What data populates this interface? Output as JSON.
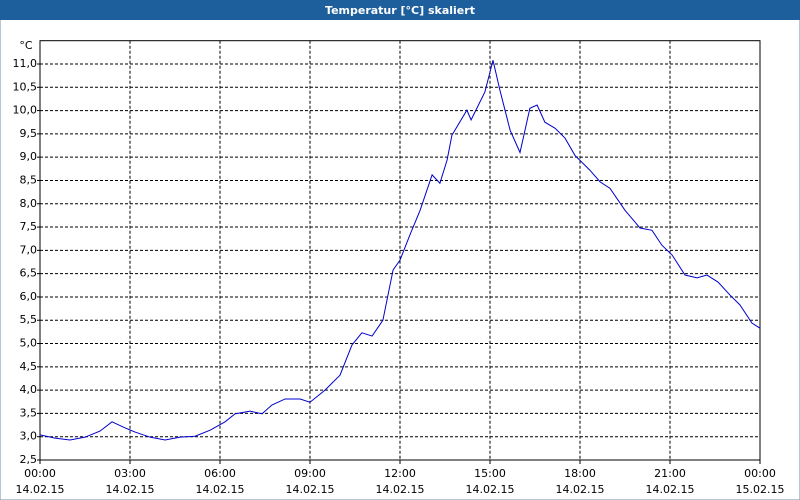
{
  "chart_data": {
    "type": "line",
    "title": "Temperatur [°C] skaliert",
    "ylabel": "°C",
    "xlim": [
      0,
      24
    ],
    "xticks": [
      {
        "value": 0,
        "label": "00:00",
        "date": "14.02.15"
      },
      {
        "value": 3,
        "label": "03:00",
        "date": "14.02.15"
      },
      {
        "value": 6,
        "label": "06:00",
        "date": "14.02.15"
      },
      {
        "value": 9,
        "label": "09:00",
        "date": "14.02.15"
      },
      {
        "value": 12,
        "label": "12:00",
        "date": "14.02.15"
      },
      {
        "value": 15,
        "label": "15:00",
        "date": "14.02.15"
      },
      {
        "value": 18,
        "label": "18:00",
        "date": "14.02.15"
      },
      {
        "value": 21,
        "label": "21:00",
        "date": "14.02.15"
      },
      {
        "value": 24,
        "label": "00:00",
        "date": "15.02.15"
      }
    ],
    "ylim": [
      2.5,
      11.5
    ],
    "yticks": [
      {
        "value": 2.5,
        "label": "2,5"
      },
      {
        "value": 3,
        "label": "3,0"
      },
      {
        "value": 3.5,
        "label": "3,5"
      },
      {
        "value": 4,
        "label": "4,0"
      },
      {
        "value": 4.5,
        "label": "4,5"
      },
      {
        "value": 5,
        "label": "5,0"
      },
      {
        "value": 5.5,
        "label": "5,5"
      },
      {
        "value": 6,
        "label": "6,0"
      },
      {
        "value": 6.5,
        "label": "6,5"
      },
      {
        "value": 7,
        "label": "7,0"
      },
      {
        "value": 7.5,
        "label": "7,5"
      },
      {
        "value": 8,
        "label": "8,0"
      },
      {
        "value": 8.5,
        "label": "8,5"
      },
      {
        "value": 9,
        "label": "9,0"
      },
      {
        "value": 9.5,
        "label": "9,5"
      },
      {
        "value": 10,
        "label": "10,0"
      },
      {
        "value": 10.5,
        "label": "10,5"
      },
      {
        "value": 11,
        "label": "11,0"
      }
    ],
    "grid": true,
    "x": [
      0,
      0.5,
      1,
      1.5,
      2,
      2.4,
      2.83,
      3.17,
      3.67,
      4.17,
      4.67,
      5.17,
      5.67,
      6.17,
      6.5,
      7,
      7.4,
      7.73,
      8.17,
      8.67,
      9,
      9.5,
      10,
      10.4,
      10.73,
      11.07,
      11.43,
      11.77,
      12,
      12.33,
      12.67,
      13.07,
      13.33,
      13.57,
      13.73,
      14.23,
      14.37,
      14.83,
      15.1,
      15.33,
      15.67,
      16,
      16.33,
      16.57,
      16.83,
      17.17,
      17.5,
      17.83,
      18.33,
      18.67,
      19,
      19.5,
      20,
      20.4,
      20.73,
      21.07,
      21.5,
      21.9,
      22.23,
      22.6,
      23,
      23.33,
      23.73,
      24
    ],
    "series": [
      {
        "color": "#0000cc",
        "values": [
          3.04,
          2.97,
          2.93,
          2.99,
          3.12,
          3.32,
          3.19,
          3.1,
          2.99,
          2.93,
          2.99,
          3.01,
          3.14,
          3.32,
          3.49,
          3.55,
          3.49,
          3.68,
          3.81,
          3.81,
          3.74,
          4.0,
          4.32,
          4.97,
          5.23,
          5.16,
          5.5,
          6.58,
          6.79,
          7.33,
          7.86,
          8.62,
          8.44,
          8.94,
          9.47,
          10.01,
          9.8,
          10.4,
          11.08,
          10.44,
          9.58,
          9.1,
          10.05,
          10.12,
          9.75,
          9.62,
          9.41,
          9.04,
          8.72,
          8.47,
          8.33,
          7.86,
          7.48,
          7.43,
          7.11,
          6.9,
          6.47,
          6.41,
          6.47,
          6.32,
          6.04,
          5.83,
          5.44,
          5.33
        ]
      }
    ]
  }
}
